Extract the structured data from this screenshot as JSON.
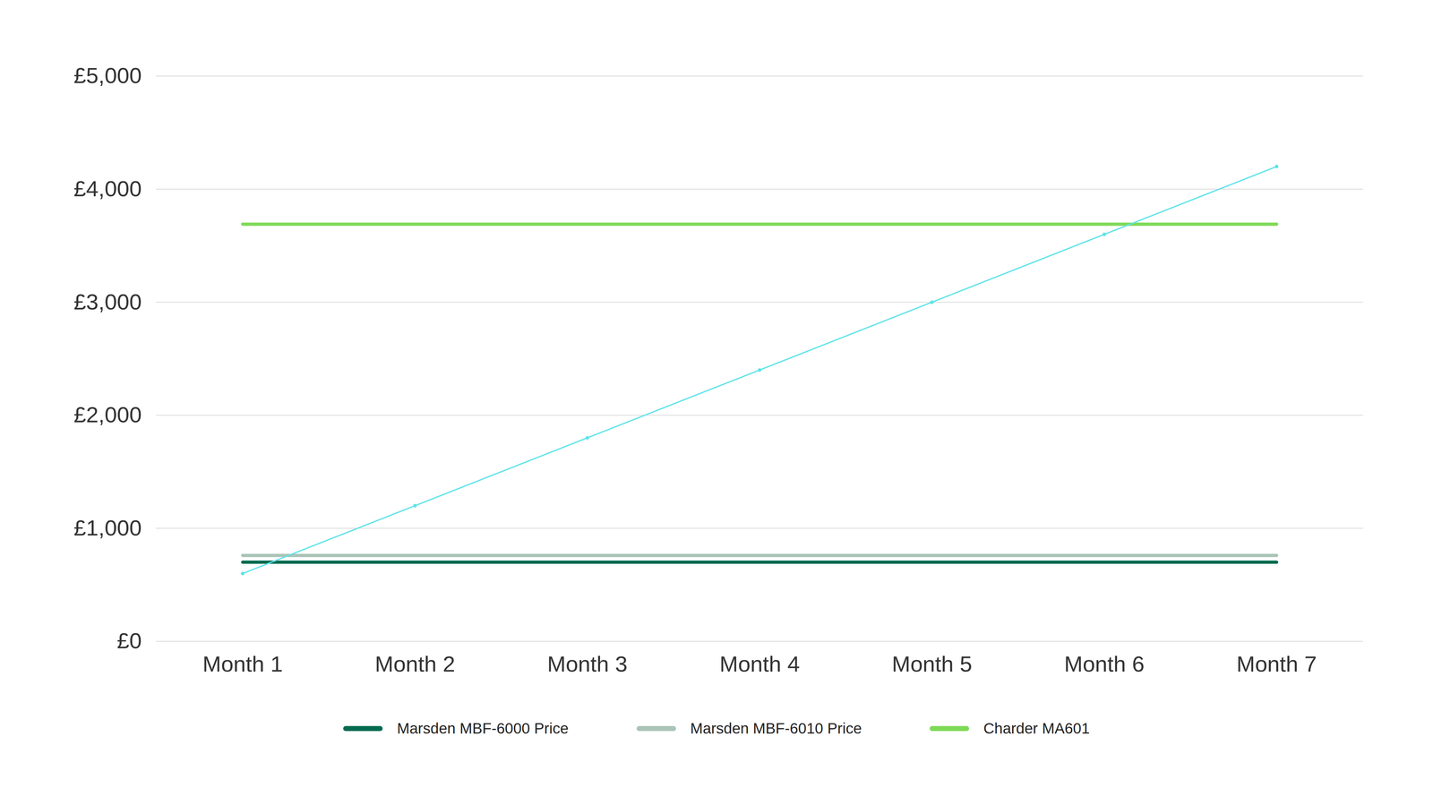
{
  "chart_data": {
    "type": "line",
    "categories": [
      "Month 1",
      "Month 2",
      "Month 3",
      "Month 4",
      "Month 5",
      "Month 6",
      "Month 7"
    ],
    "series": [
      {
        "name": "Marsden MBF-6000 Price",
        "color": "#006b4f",
        "values": [
          700,
          700,
          700,
          700,
          700,
          700,
          700
        ]
      },
      {
        "name": "Marsden MBF-6010 Price",
        "color": "#a9c4b6",
        "values": [
          760,
          760,
          760,
          760,
          760,
          760,
          760
        ]
      },
      {
        "name": "Charder MA601",
        "color": "#7ed957",
        "values": [
          3690,
          3690,
          3690,
          3690,
          3690,
          3690,
          3690
        ]
      },
      {
        "name": null,
        "color": "#5fe3e8",
        "marker": "circle",
        "values": [
          600,
          1200,
          1800,
          2400,
          3000,
          3600,
          4200
        ]
      }
    ],
    "ylim": [
      0,
      5000
    ],
    "yticks": [
      {
        "value": 0,
        "label": "£0"
      },
      {
        "value": 1000,
        "label": "£1,000"
      },
      {
        "value": 2000,
        "label": "£2,000"
      },
      {
        "value": 3000,
        "label": "£3,000"
      },
      {
        "value": 4000,
        "label": "£4,000"
      },
      {
        "value": 5000,
        "label": "£5,000"
      }
    ],
    "grid": true,
    "legend": "bottom"
  }
}
